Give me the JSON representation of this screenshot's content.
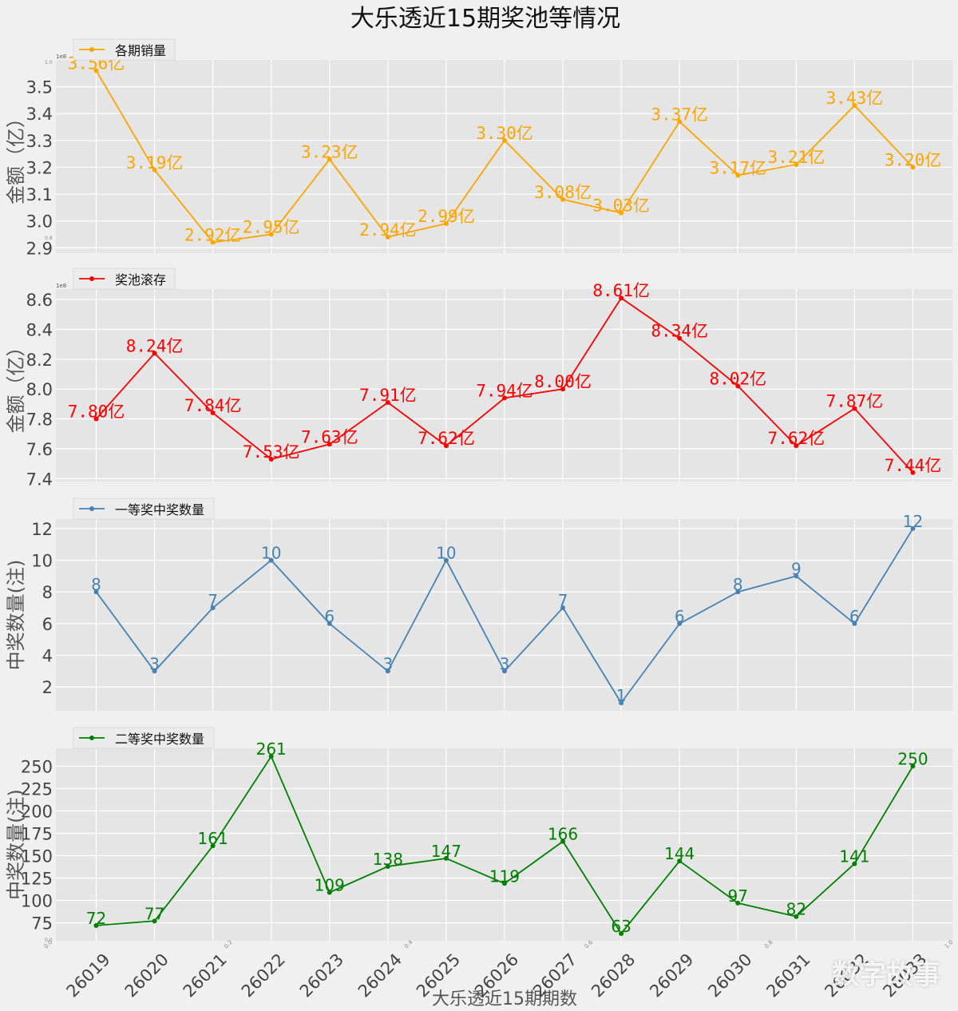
{
  "title": "大乐透近15期奖池等情况",
  "xlabel": "大乐透近15期期数",
  "watermark": "数字故事",
  "colors": {
    "sales": "#FFA500",
    "pool": "#FF0000",
    "first": "#4682B4",
    "second": "#008000",
    "bg": "#e5e5e5",
    "grid": "#ffffff"
  },
  "chart_data": [
    {
      "type": "line",
      "legend": "各期销量",
      "ylabel": "金额（亿）",
      "offset_text": "1e8",
      "categories": [
        "26019",
        "26020",
        "26021",
        "26022",
        "26023",
        "26024",
        "26025",
        "26026",
        "26027",
        "26028",
        "26029",
        "26030",
        "26031",
        "26032",
        "26033"
      ],
      "values": [
        3.56,
        3.19,
        2.92,
        2.95,
        3.23,
        2.94,
        2.99,
        3.3,
        3.08,
        3.03,
        3.37,
        3.17,
        3.21,
        3.43,
        3.2
      ],
      "labels": [
        "3.56亿",
        "3.19亿",
        "2.92亿",
        "2.95亿",
        "3.23亿",
        "2.94亿",
        "2.99亿",
        "3.30亿",
        "3.08亿",
        "3.03亿",
        "3.37亿",
        "3.17亿",
        "3.21亿",
        "3.43亿",
        "3.20亿"
      ],
      "yticks": [
        "2.9",
        "3.0",
        "3.1",
        "3.2",
        "3.3",
        "3.4",
        "3.5"
      ],
      "ytick_values": [
        2.9,
        3.0,
        3.1,
        3.2,
        3.3,
        3.4,
        3.5
      ],
      "ylim": [
        2.88,
        3.6
      ]
    },
    {
      "type": "line",
      "legend": "奖池滚存",
      "ylabel": "金额（亿）",
      "offset_text": "1e8",
      "categories": [
        "26019",
        "26020",
        "26021",
        "26022",
        "26023",
        "26024",
        "26025",
        "26026",
        "26027",
        "26028",
        "26029",
        "26030",
        "26031",
        "26032",
        "26033"
      ],
      "values": [
        7.8,
        8.24,
        7.84,
        7.53,
        7.63,
        7.91,
        7.62,
        7.94,
        8.0,
        8.61,
        8.34,
        8.02,
        7.62,
        7.87,
        7.44
      ],
      "labels": [
        "7.80亿",
        "8.24亿",
        "7.84亿",
        "7.53亿",
        "7.63亿",
        "7.91亿",
        "7.62亿",
        "7.94亿",
        "8.00亿",
        "8.61亿",
        "8.34亿",
        "8.02亿",
        "7.62亿",
        "7.87亿",
        "7.44亿"
      ],
      "yticks": [
        "7.4",
        "7.6",
        "7.8",
        "8.0",
        "8.2",
        "8.4",
        "8.6"
      ],
      "ytick_values": [
        7.4,
        7.6,
        7.8,
        8.0,
        8.2,
        8.4,
        8.6
      ],
      "ylim": [
        7.38,
        8.67
      ]
    },
    {
      "type": "line",
      "legend": "一等奖中奖数量",
      "ylabel": "中奖数量(注)",
      "categories": [
        "26019",
        "26020",
        "26021",
        "26022",
        "26023",
        "26024",
        "26025",
        "26026",
        "26027",
        "26028",
        "26029",
        "26030",
        "26031",
        "26032",
        "26033"
      ],
      "values": [
        8,
        3,
        7,
        10,
        6,
        3,
        10,
        3,
        7,
        1,
        6,
        8,
        9,
        6,
        12
      ],
      "labels": [
        "8",
        "3",
        "7",
        "10",
        "6",
        "3",
        "10",
        "3",
        "7",
        "1",
        "6",
        "8",
        "9",
        "6",
        "12"
      ],
      "yticks": [
        "2",
        "4",
        "6",
        "8",
        "10",
        "12"
      ],
      "ytick_values": [
        2,
        4,
        6,
        8,
        10,
        12
      ],
      "ylim": [
        0.5,
        12.6
      ]
    },
    {
      "type": "line",
      "legend": "二等奖中奖数量",
      "ylabel": "中奖数量(注)",
      "categories": [
        "26019",
        "26020",
        "26021",
        "26022",
        "26023",
        "26024",
        "26025",
        "26026",
        "26027",
        "26028",
        "26029",
        "26030",
        "26031",
        "26032",
        "26033"
      ],
      "values": [
        72,
        77,
        161,
        261,
        109,
        138,
        147,
        119,
        166,
        63,
        144,
        97,
        82,
        141,
        250
      ],
      "labels": [
        "72",
        "77",
        "161",
        "261",
        "109",
        "138",
        "147",
        "119",
        "166",
        "63",
        "144",
        "97",
        "82",
        "141",
        "250"
      ],
      "yticks": [
        "75",
        "100",
        "125",
        "150",
        "175",
        "200",
        "225",
        "250"
      ],
      "ytick_values": [
        75,
        100,
        125,
        150,
        175,
        200,
        225,
        250
      ],
      "ylim": [
        55,
        270
      ]
    }
  ],
  "ghost_ticks": {
    "x": [
      "0.0",
      "0.2",
      "0.4",
      "0.6",
      "0.8",
      "1.0"
    ],
    "x_values": [
      0,
      0.2,
      0.4,
      0.6,
      0.8,
      1.0
    ],
    "y_top": "1.0",
    "y_bottom": "0.8",
    "corner_y": "0.0"
  }
}
